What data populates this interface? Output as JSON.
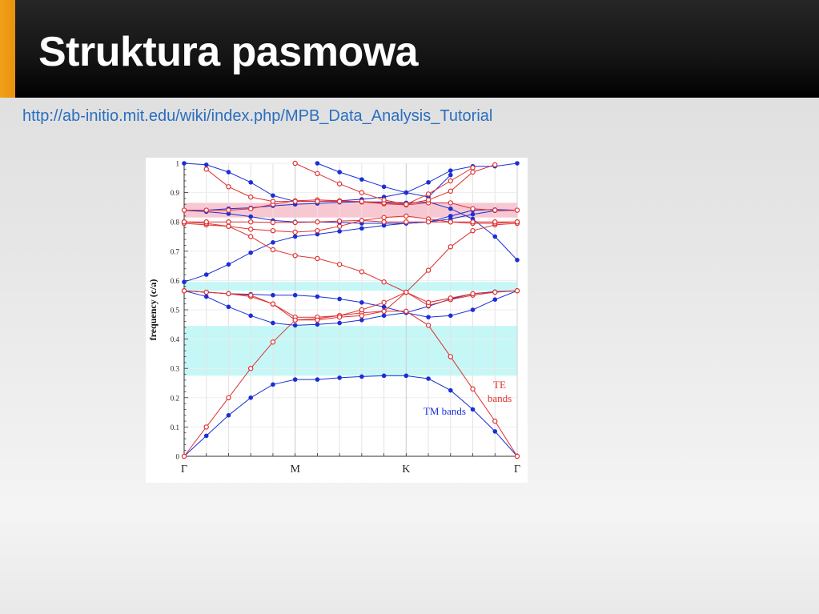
{
  "slide": {
    "title": "Struktura pasmowa",
    "link": "http://ab-initio.mit.edu/wiki/index.php/MPB_Data_Analysis_Tutorial"
  },
  "colors": {
    "accent": "#f0a01a",
    "title_bar": "#141414",
    "link": "#2a6fbf",
    "te": "#e03030",
    "tm": "#1a2fd6",
    "te_gap": "#f7c8d2",
    "tm_gap": "#c6f7f7"
  },
  "chart_data": {
    "type": "line",
    "ylabel": "frequency (c/a)",
    "ylim": [
      0,
      1
    ],
    "yticks": [
      "0",
      "0.1",
      "0.2",
      "0.3",
      "0.4",
      "0.5",
      "0.6",
      "0.7",
      "0.8",
      "0.9",
      "1"
    ],
    "xticks": [
      "Γ",
      "M",
      "K",
      "Γ"
    ],
    "x": [
      0,
      1,
      2,
      3,
      4,
      5,
      6,
      7,
      8,
      9,
      10,
      11,
      12,
      13,
      14,
      15
    ],
    "gaps": [
      {
        "band": "TM",
        "range": [
          0.275,
          0.445
        ]
      },
      {
        "band": "TM",
        "range": [
          0.565,
          0.595
        ]
      },
      {
        "band": "TE",
        "range": [
          0.815,
          0.865
        ]
      }
    ],
    "series": [
      {
        "name": "TM bands",
        "values": [
          0,
          0.07,
          0.14,
          0.2,
          0.245,
          0.262,
          0.262,
          0.268,
          0.272,
          0.275,
          0.275,
          0.265,
          0.225,
          0.16,
          0.085,
          0
        ]
      },
      {
        "values": [
          0.565,
          0.545,
          0.51,
          0.48,
          0.455,
          0.447,
          0.45,
          0.455,
          0.465,
          0.48,
          0.49,
          0.475,
          0.48,
          0.5,
          0.535,
          0.565
        ]
      },
      {
        "values": [
          0.565,
          0.56,
          0.555,
          0.553,
          0.55,
          0.55,
          0.545,
          0.537,
          0.525,
          0.51,
          0.49,
          0.512,
          0.537,
          0.555,
          0.562,
          0.565
        ]
      },
      {
        "values": [
          0.595,
          0.62,
          0.655,
          0.695,
          0.73,
          0.75,
          0.758,
          0.768,
          0.778,
          0.788,
          0.795,
          0.8,
          0.81,
          0.826,
          0.838,
          0.84
        ]
      },
      {
        "values": [
          0.84,
          0.835,
          0.828,
          0.818,
          0.805,
          0.8,
          0.8,
          0.798,
          0.795,
          0.795,
          0.795,
          0.8,
          0.82,
          0.84,
          0.842,
          0.84
        ]
      },
      {
        "values": [
          0.84,
          0.84,
          0.845,
          0.848,
          0.855,
          0.86,
          0.863,
          0.867,
          0.868,
          0.868,
          0.865,
          0.868,
          0.845,
          0.81,
          0.75,
          0.67
        ]
      },
      {
        "values": [
          1.0,
          0.995,
          0.97,
          0.935,
          0.89,
          0.87,
          0.87,
          0.872,
          0.877,
          0.885,
          0.9,
          0.935,
          0.975,
          0.99,
          0.99,
          1.0
        ]
      },
      {
        "values": [
          null,
          null,
          null,
          null,
          null,
          null,
          1.0,
          0.97,
          0.945,
          0.92,
          0.9,
          0.885,
          0.96,
          null,
          null,
          null
        ]
      },
      {
        "name": "TE bands",
        "values": [
          0,
          0.1,
          0.2,
          0.3,
          0.39,
          0.465,
          0.47,
          0.48,
          0.49,
          0.495,
          0.495,
          0.447,
          0.34,
          0.23,
          0.12,
          0
        ]
      },
      {
        "values": [
          0.565,
          0.56,
          0.555,
          0.545,
          0.52,
          0.475,
          0.475,
          0.48,
          0.5,
          0.525,
          0.56,
          0.515,
          0.535,
          0.55,
          0.56,
          0.565
        ]
      },
      {
        "values": [
          0.565,
          0.56,
          0.555,
          0.55,
          0.52,
          0.465,
          0.465,
          0.475,
          0.48,
          0.495,
          0.56,
          0.635,
          0.715,
          0.77,
          0.79,
          0.795
        ]
      },
      {
        "values": [
          0.795,
          0.79,
          0.785,
          0.75,
          0.705,
          0.685,
          0.675,
          0.655,
          0.63,
          0.595,
          0.56,
          0.525,
          0.54,
          0.555,
          0.56,
          0.565
        ]
      },
      {
        "values": [
          0.8,
          0.795,
          0.785,
          0.775,
          0.77,
          0.765,
          0.77,
          0.785,
          0.805,
          0.815,
          0.82,
          0.81,
          0.8,
          0.795,
          0.795,
          0.8
        ]
      },
      {
        "values": [
          0.8,
          0.8,
          0.8,
          0.8,
          0.798,
          0.798,
          0.8,
          0.803,
          0.805,
          0.8,
          0.8,
          0.8,
          0.8,
          0.8,
          0.8,
          0.8
        ]
      },
      {
        "values": [
          0.84,
          0.84,
          0.84,
          0.845,
          0.86,
          0.872,
          0.875,
          0.872,
          0.868,
          0.862,
          0.858,
          0.865,
          0.865,
          0.845,
          0.84,
          0.84
        ]
      },
      {
        "values": [
          null,
          0.98,
          0.92,
          0.885,
          0.87,
          0.87,
          0.87,
          0.87,
          0.87,
          0.865,
          0.86,
          0.875,
          0.905,
          0.97,
          0.995,
          null
        ]
      },
      {
        "values": [
          null,
          null,
          null,
          null,
          null,
          1.0,
          0.965,
          0.93,
          0.9,
          0.875,
          0.86,
          0.895,
          0.94,
          0.985,
          null,
          null
        ]
      }
    ],
    "series_band": [
      "TM",
      "TM",
      "TM",
      "TM",
      "TM",
      "TM",
      "TM",
      "TM",
      "TE",
      "TE",
      "TE",
      "TE",
      "TE",
      "TE",
      "TE",
      "TE",
      "TE"
    ],
    "legend": [
      {
        "label": "TM bands",
        "band": "TM"
      },
      {
        "label": "TE",
        "band": "TE"
      },
      {
        "label": "bands",
        "band": "TE"
      }
    ]
  }
}
